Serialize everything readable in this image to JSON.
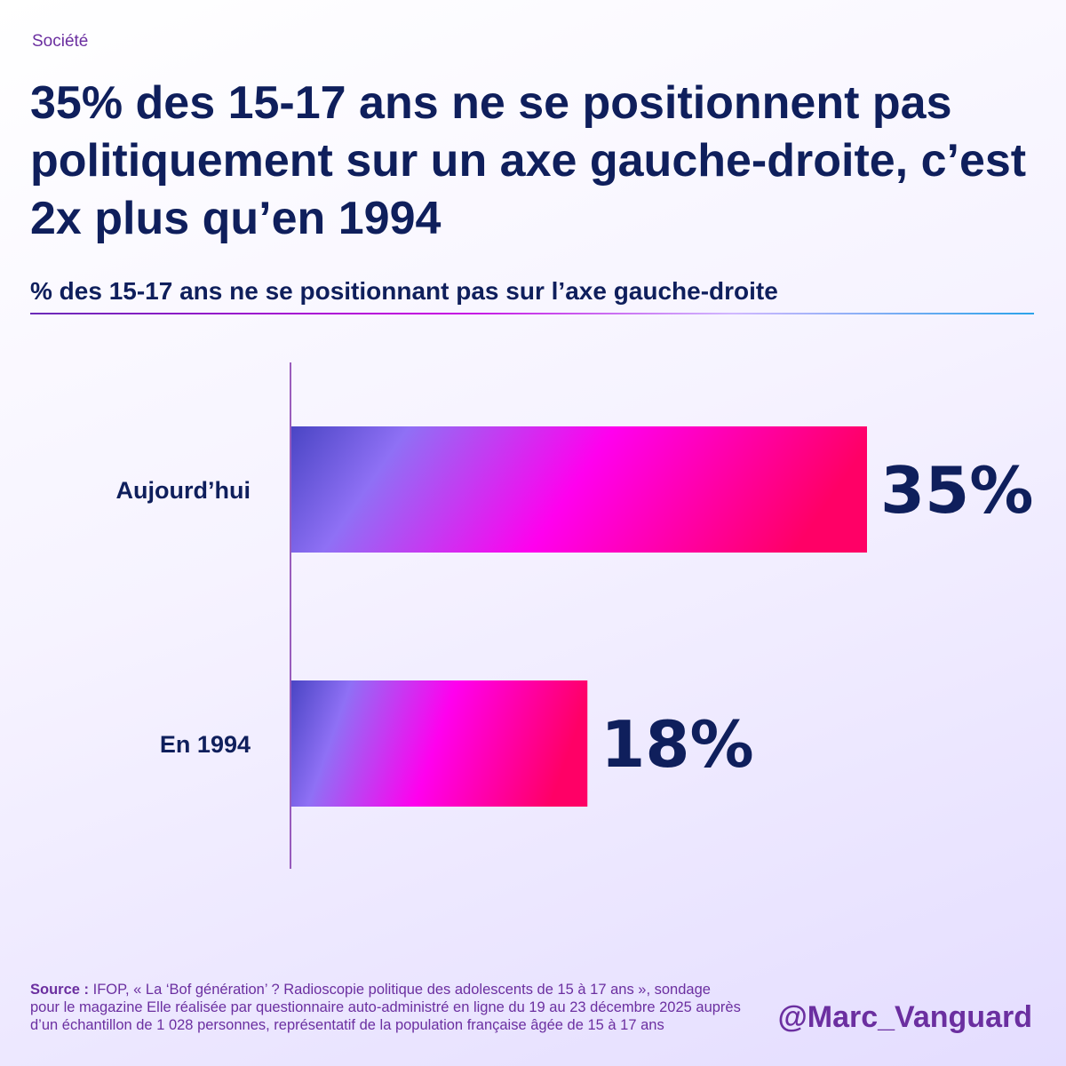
{
  "header": {
    "category": "Société",
    "title": "35% des 15-17 ans ne se positionnent pas politiquement sur un axe gauche-droite, c’est 2x plus qu’en 1994",
    "subtitle": "% des 15-17 ans ne se positionnant pas sur l’axe gauche-droite"
  },
  "chart_data": {
    "type": "bar",
    "orientation": "horizontal",
    "categories": [
      "Aujourd’hui",
      "En 1994"
    ],
    "values": [
      35,
      18
    ],
    "value_labels": [
      "35%",
      "18%"
    ],
    "unit": "%",
    "xlim": [
      0,
      35
    ],
    "grid": false,
    "legend": "none",
    "bar_gradient": [
      "#4a45c4",
      "#8f70f5",
      "#ff00ee",
      "#ff0066"
    ]
  },
  "footer": {
    "source_label": "Source :",
    "source_text": " IFOP, « La ‘Bof génération’ ? Radioscopie politique des adolescents de 15 à 17 ans », sondage pour le magazine Elle réalisée par questionnaire auto-administré en ligne du 19 au 23 décembre 2025 auprès d’un échantillon de 1 028 personnes, représentatif de la population française âgée de 15 à 17 ans",
    "handle": "@Marc_Vanguard"
  }
}
